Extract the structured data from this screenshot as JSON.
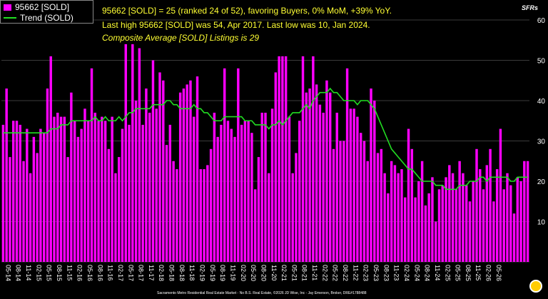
{
  "legend": {
    "bar_label": "95662 [SOLD]",
    "line_label": "Trend (SOLD)"
  },
  "info": {
    "line1": "95662 [SOLD] = 25 (ranked 24 of 52), favoring Buyers, 0% MoM, +39% YoY.",
    "line2": "Last high 95662 [SOLD] was 54, Apr 2017. Last low was 10, Jan 2024.",
    "line3": "Composite Average [SOLD] Listings is 29"
  },
  "unit_label": "SFRs",
  "footer": "Sacramento Metro Residential Real Estate Market - No B.S. Real Estate, ©2026 JD Wise, Inc - Jay Emerson, Broker, DRE#1788488",
  "colors": {
    "bar": "#ff00ff",
    "line": "#22dd22",
    "text": "#ffff33"
  },
  "chart_data": {
    "type": "bar",
    "ylim": [
      0,
      60
    ],
    "yticks": [
      0,
      10,
      20,
      30,
      40,
      50,
      60
    ],
    "grid": true,
    "legend_position": "top-left",
    "x_labels": [
      "05-14",
      "08-14",
      "11-14",
      "02-15",
      "05-15",
      "08-15",
      "11-15",
      "02-16",
      "05-16",
      "08-16",
      "11-16",
      "02-17",
      "05-17",
      "08-17",
      "11-17",
      "02-18",
      "05-18",
      "08-18",
      "11-18",
      "02-19",
      "05-19",
      "08-19",
      "11-19",
      "02-20",
      "05-20",
      "08-20",
      "11-20",
      "02-21",
      "05-21",
      "08-21",
      "11-21",
      "02-22",
      "05-22",
      "08-22",
      "11-22",
      "02-23",
      "05-23",
      "08-23",
      "11-23",
      "02-24",
      "05-24",
      "08-24",
      "11-24",
      "02-25",
      "05-25",
      "08-25",
      "11-25",
      "02-26",
      "05-26"
    ],
    "series": [
      {
        "name": "95662 [SOLD]",
        "type": "bar",
        "values": [
          34,
          43,
          26,
          35,
          35,
          34,
          25,
          33,
          22,
          31,
          27,
          33,
          32,
          43,
          51,
          36,
          37,
          36,
          36,
          26,
          42,
          35,
          31,
          33,
          38,
          35,
          48,
          37,
          35,
          36,
          35,
          28,
          36,
          22,
          26,
          33,
          54,
          34,
          54,
          40,
          53,
          34,
          43,
          37,
          50,
          38,
          47,
          45,
          29,
          34,
          25,
          23,
          42,
          43,
          44,
          45,
          36,
          46,
          23,
          23,
          24,
          28,
          37,
          31,
          34,
          48,
          35,
          33,
          31,
          48,
          34,
          35,
          35,
          32,
          18,
          26,
          37,
          37,
          22,
          38,
          47,
          51,
          51,
          51,
          36,
          22,
          27,
          35,
          51,
          42,
          43,
          51,
          44,
          39,
          37,
          45,
          42,
          28,
          37,
          30,
          30,
          48,
          38,
          38,
          36,
          32,
          30,
          25,
          43,
          40,
          27,
          28,
          22,
          17,
          25,
          24,
          22,
          23,
          16,
          33,
          28,
          16,
          20,
          25,
          14,
          17,
          21,
          10,
          18,
          19,
          21,
          24,
          22,
          18,
          25,
          22,
          19,
          15,
          20,
          28,
          23,
          18,
          24,
          28,
          15,
          23,
          33,
          18,
          22,
          19,
          12,
          21,
          20,
          25,
          25
        ]
      },
      {
        "name": "Trend (SOLD)",
        "type": "line",
        "values": [
          32,
          32,
          32,
          32,
          32,
          32,
          32,
          32,
          32,
          32,
          32,
          32,
          32,
          32,
          33,
          33,
          33,
          34,
          34,
          34,
          35,
          35,
          35,
          35,
          35,
          35,
          35,
          36,
          35,
          35,
          36,
          35,
          35,
          35,
          36,
          35,
          36,
          37,
          37,
          38,
          38,
          38,
          38,
          38,
          39,
          39,
          39,
          39,
          40,
          40,
          39,
          39,
          38,
          38,
          38,
          38,
          39,
          38,
          38,
          37,
          37,
          36,
          35,
          35,
          35,
          36,
          36,
          36,
          36,
          36,
          36,
          35,
          35,
          35,
          34,
          34,
          34,
          34,
          33,
          34,
          34,
          35,
          34,
          35,
          36,
          37,
          37,
          37,
          38,
          39,
          38,
          40,
          41,
          42,
          42,
          42,
          43,
          42,
          42,
          41,
          40,
          40,
          40,
          40,
          39,
          40,
          40,
          40,
          39,
          38,
          36,
          34,
          32,
          30,
          28,
          27,
          26,
          25,
          24,
          23,
          23,
          22,
          21,
          20,
          20,
          20,
          20,
          19,
          19,
          19,
          18,
          18,
          18,
          18,
          19,
          19,
          19,
          20,
          20,
          20,
          21,
          21,
          20,
          21,
          21,
          21,
          21,
          21,
          21,
          20,
          20,
          21,
          21,
          21,
          21
        ]
      }
    ]
  }
}
